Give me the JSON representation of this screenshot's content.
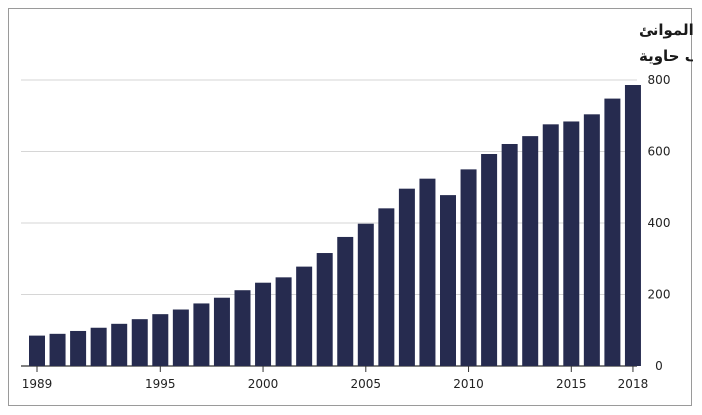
{
  "chart_data": {
    "type": "bar",
    "title": "عدد الحاويات التى عبرت الموانئ",
    "subtitle": "بالألف حاوية",
    "x": [
      1989,
      1990,
      1991,
      1992,
      1993,
      1994,
      1995,
      1996,
      1997,
      1998,
      1999,
      2000,
      2001,
      2002,
      2003,
      2004,
      2005,
      2006,
      2007,
      2008,
      2009,
      2010,
      2011,
      2012,
      2013,
      2014,
      2015,
      2016,
      2017,
      2018
    ],
    "values": [
      85,
      90,
      98,
      107,
      118,
      131,
      145,
      158,
      175,
      191,
      212,
      233,
      248,
      278,
      316,
      361,
      398,
      441,
      496,
      524,
      478,
      550,
      593,
      621,
      643,
      676,
      684,
      704,
      748,
      786
    ],
    "x_tick_labels": [
      "1989",
      "1995",
      "2000",
      "2005",
      "2010",
      "2015",
      "2018"
    ],
    "y_ticks": [
      "0",
      "200",
      "400",
      "600",
      "800"
    ],
    "ylim": [
      0,
      800
    ],
    "bar_color": "#262b4f",
    "grid": true,
    "y_axis_side": "right"
  }
}
